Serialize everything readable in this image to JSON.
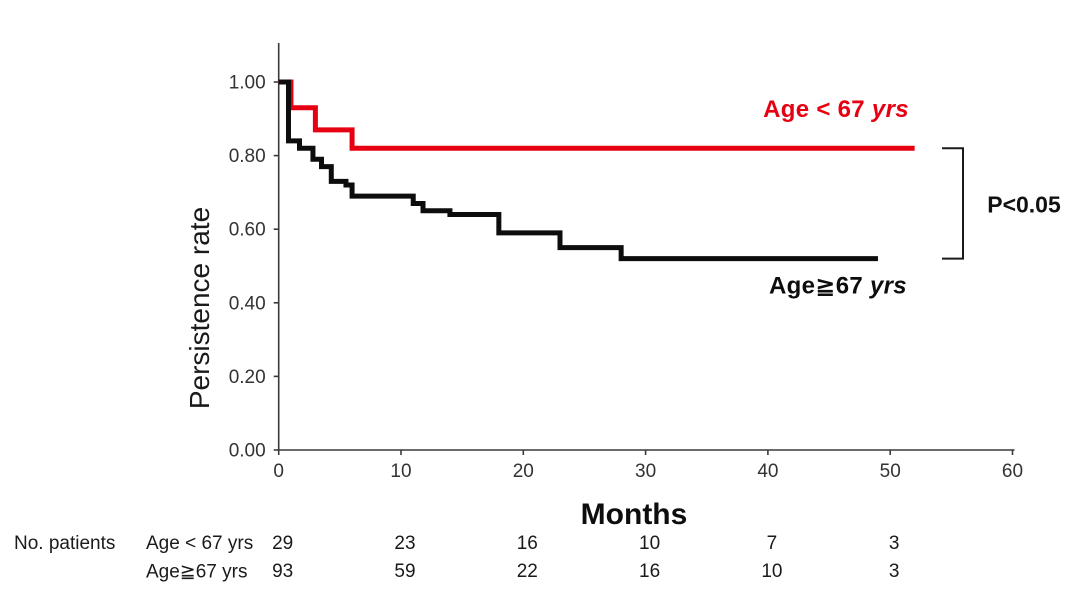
{
  "figure": {
    "background": "#ffffff"
  },
  "chart_data": {
    "type": "line",
    "subtype": "kaplan-meier-step",
    "title": "",
    "xlabel": "Months",
    "ylabel": "Persistence rate",
    "xlim": [
      0,
      60
    ],
    "ylim": [
      0.0,
      1.0
    ],
    "xticks": [
      0,
      10,
      20,
      30,
      40,
      50,
      60
    ],
    "yticks": [
      0.0,
      0.2,
      0.4,
      0.6,
      0.8,
      1.0
    ],
    "ytick_labels": [
      "0.00",
      "0.20",
      "0.40",
      "0.60",
      "0.80",
      "1.00"
    ],
    "grid": false,
    "axis_color": "#3a3a3a",
    "legend_position": "labels-at-curve-end",
    "annotations": {
      "p_value": "P<0.05"
    },
    "series": [
      {
        "name": "Age < 67 yrs",
        "label_main": "Age < 67",
        "label_italic": "yrs",
        "color": "#e60012",
        "steps": [
          [
            0,
            1.0
          ],
          [
            1,
            0.93
          ],
          [
            3,
            0.87
          ],
          [
            6,
            0.82
          ]
        ],
        "end_month": 52
      },
      {
        "name": "Age ≧ 67 yrs",
        "label_main": "Age≧67",
        "label_italic": "yrs",
        "color": "#0d0d0d",
        "steps": [
          [
            0,
            1.0
          ],
          [
            0.8,
            0.84
          ],
          [
            1.7,
            0.82
          ],
          [
            2.8,
            0.79
          ],
          [
            3.5,
            0.77
          ],
          [
            4.3,
            0.73
          ],
          [
            5.5,
            0.72
          ],
          [
            6,
            0.69
          ],
          [
            11,
            0.67
          ],
          [
            11.8,
            0.65
          ],
          [
            14,
            0.64
          ],
          [
            18,
            0.59
          ],
          [
            23,
            0.55
          ],
          [
            28,
            0.52
          ]
        ],
        "end_month": 49
      }
    ]
  },
  "risk_table": {
    "row_header": "No. patients",
    "columns_months": [
      0,
      10,
      20,
      30,
      40,
      50
    ],
    "rows": [
      {
        "label": "Age < 67 yrs",
        "counts": [
          29,
          23,
          16,
          10,
          7,
          3
        ]
      },
      {
        "label": "Age≧67 yrs",
        "counts": [
          93,
          59,
          22,
          16,
          10,
          3
        ]
      }
    ]
  }
}
